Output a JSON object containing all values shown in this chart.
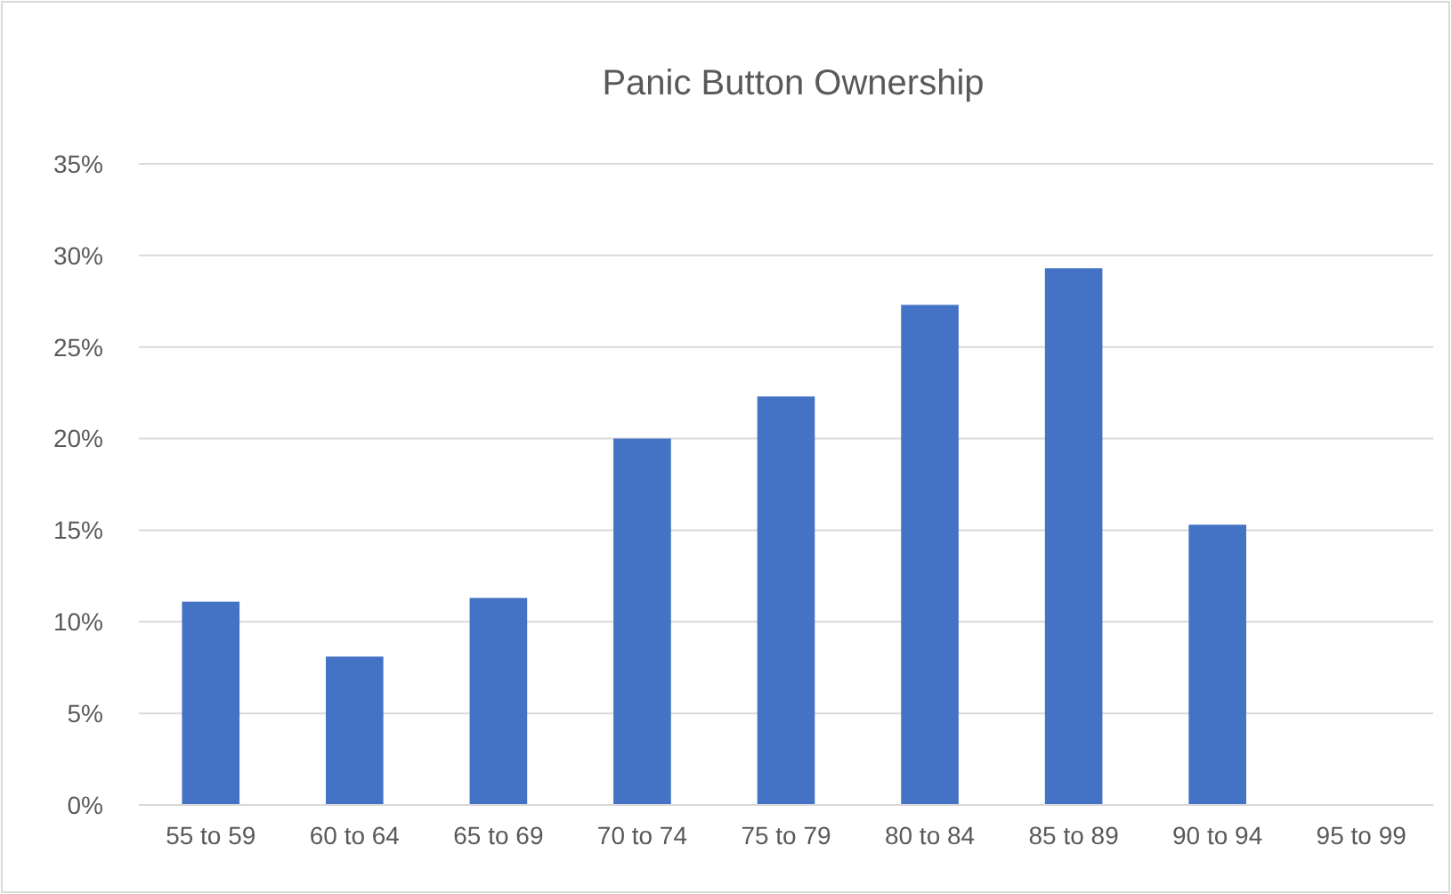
{
  "chart_data": {
    "type": "bar",
    "title": "Panic Button Ownership",
    "categories": [
      "55 to 59",
      "60 to 64",
      "65 to 69",
      "70 to 74",
      "75 to 79",
      "80 to 84",
      "85 to 89",
      "90 to 94",
      "95 to 99"
    ],
    "values": [
      11.1,
      8.1,
      11.3,
      20.0,
      22.3,
      27.3,
      29.3,
      15.3,
      0
    ],
    "color": "#4472c4",
    "ylim": [
      0,
      35
    ],
    "yticks": [
      {
        "value": 0,
        "label": "0%"
      },
      {
        "value": 5,
        "label": "5%"
      },
      {
        "value": 10,
        "label": "10%"
      },
      {
        "value": 15,
        "label": "15%"
      },
      {
        "value": 20,
        "label": "20%"
      },
      {
        "value": 25,
        "label": "25%"
      },
      {
        "value": 30,
        "label": "30%"
      },
      {
        "value": 35,
        "label": "35%"
      }
    ],
    "grid": true
  }
}
